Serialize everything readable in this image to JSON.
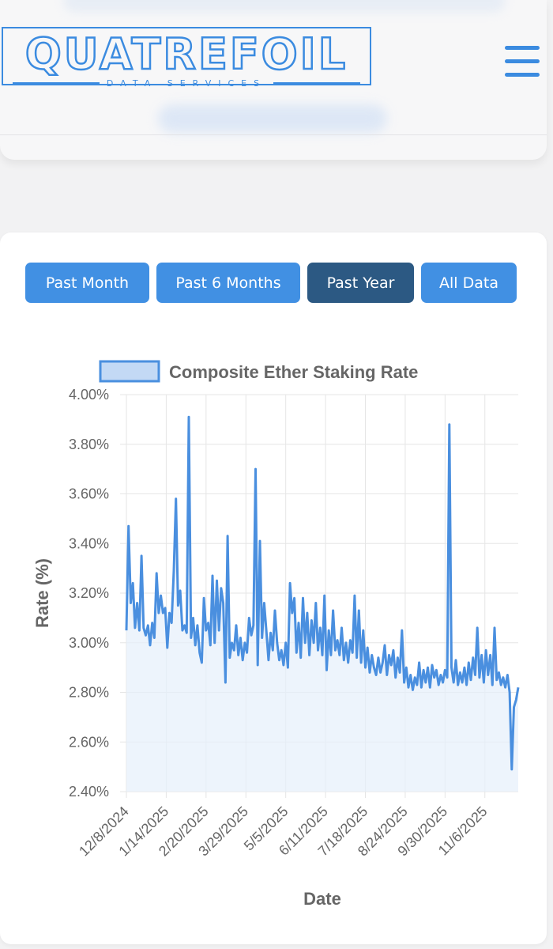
{
  "header": {
    "logo_text": "QUATREFOIL",
    "logo_subtext": "DATA SERVICES",
    "menu_icon": "hamburger-menu-icon"
  },
  "range_buttons": [
    {
      "label": "Past Month",
      "active": false
    },
    {
      "label": "Past 6 Months",
      "active": false
    },
    {
      "label": "Past Year",
      "active": true
    },
    {
      "label": "All Data",
      "active": false
    }
  ],
  "colors": {
    "accent": "#4190e3",
    "active_button": "#2c5983",
    "line": "#4a8fdf",
    "fill": "#e6effb",
    "legend_fill": "#c3d9f5"
  },
  "chart_data": {
    "type": "area",
    "title": "",
    "legend": [
      "Composite Ether Staking Rate"
    ],
    "legend_position": "top",
    "xlabel": "Date",
    "ylabel": "Rate (%)",
    "ylim": [
      2.4,
      4.0
    ],
    "yticks": [
      "4.00%",
      "3.80%",
      "3.60%",
      "3.40%",
      "3.20%",
      "3.00%",
      "2.80%",
      "2.60%",
      "2.40%"
    ],
    "xticks": [
      "12/8/2024",
      "1/14/2025",
      "2/20/2025",
      "3/29/2025",
      "5/5/2025",
      "6/11/2025",
      "7/18/2025",
      "8/24/2025",
      "9/30/2025",
      "11/6/2025"
    ],
    "x_range": [
      "12/8/2024",
      "12/7/2025"
    ],
    "grid": true,
    "series": [
      {
        "name": "Composite Ether Staking Rate",
        "points": [
          [
            "12/8/2024",
            3.05
          ],
          [
            "12/10/2024",
            3.47
          ],
          [
            "12/12/2024",
            3.16
          ],
          [
            "12/14/2024",
            3.24
          ],
          [
            "12/16/2024",
            3.06
          ],
          [
            "12/18/2024",
            3.16
          ],
          [
            "12/20/2024",
            3.05
          ],
          [
            "12/22/2024",
            3.35
          ],
          [
            "12/24/2024",
            3.06
          ],
          [
            "12/26/2024",
            3.03
          ],
          [
            "12/28/2024",
            3.07
          ],
          [
            "12/30/2024",
            2.99
          ],
          [
            "1/1/2025",
            3.08
          ],
          [
            "1/3/2025",
            3.02
          ],
          [
            "1/5/2025",
            3.28
          ],
          [
            "1/7/2025",
            3.12
          ],
          [
            "1/9/2025",
            3.19
          ],
          [
            "1/11/2025",
            3.12
          ],
          [
            "1/13/2025",
            3.14
          ],
          [
            "1/15/2025",
            2.98
          ],
          [
            "1/17/2025",
            3.12
          ],
          [
            "1/19/2025",
            3.08
          ],
          [
            "1/21/2025",
            3.29
          ],
          [
            "1/23/2025",
            3.58
          ],
          [
            "1/25/2025",
            3.15
          ],
          [
            "1/27/2025",
            3.21
          ],
          [
            "1/29/2025",
            3.05
          ],
          [
            "1/31/2025",
            3.07
          ],
          [
            "2/2/2025",
            3.04
          ],
          [
            "2/4/2025",
            3.91
          ],
          [
            "2/6/2025",
            3.02
          ],
          [
            "2/8/2025",
            3.1
          ],
          [
            "2/10/2025",
            2.99
          ],
          [
            "2/12/2025",
            3.07
          ],
          [
            "2/14/2025",
            2.96
          ],
          [
            "2/16/2025",
            2.92
          ],
          [
            "2/18/2025",
            3.18
          ],
          [
            "2/20/2025",
            3.05
          ],
          [
            "2/22/2025",
            3.08
          ],
          [
            "2/24/2025",
            2.99
          ],
          [
            "2/26/2025",
            3.27
          ],
          [
            "2/28/2025",
            3.0
          ],
          [
            "3/2/2025",
            3.25
          ],
          [
            "3/4/2025",
            3.05
          ],
          [
            "3/6/2025",
            3.22
          ],
          [
            "3/8/2025",
            3.16
          ],
          [
            "3/10/2025",
            2.84
          ],
          [
            "3/12/2025",
            3.43
          ],
          [
            "3/14/2025",
            2.94
          ],
          [
            "3/16/2025",
            3.0
          ],
          [
            "3/18/2025",
            2.97
          ],
          [
            "3/20/2025",
            3.07
          ],
          [
            "3/22/2025",
            2.95
          ],
          [
            "3/24/2025",
            3.02
          ],
          [
            "3/26/2025",
            2.93
          ],
          [
            "3/28/2025",
            3.0
          ],
          [
            "3/30/2025",
            2.96
          ],
          [
            "4/1/2025",
            3.1
          ],
          [
            "4/3/2025",
            3.03
          ],
          [
            "4/5/2025",
            3.07
          ],
          [
            "4/7/2025",
            3.7
          ],
          [
            "4/9/2025",
            2.91
          ],
          [
            "4/11/2025",
            3.41
          ],
          [
            "4/13/2025",
            3.02
          ],
          [
            "4/15/2025",
            3.16
          ],
          [
            "4/17/2025",
            3.05
          ],
          [
            "4/19/2025",
            2.93
          ],
          [
            "4/21/2025",
            3.04
          ],
          [
            "4/23/2025",
            2.97
          ],
          [
            "4/25/2025",
            3.13
          ],
          [
            "4/27/2025",
            3.0
          ],
          [
            "4/29/2025",
            2.93
          ],
          [
            "5/1/2025",
            2.97
          ],
          [
            "5/3/2025",
            2.91
          ],
          [
            "5/5/2025",
            3.0
          ],
          [
            "5/7/2025",
            2.9
          ],
          [
            "5/9/2025",
            3.24
          ],
          [
            "5/11/2025",
            3.12
          ],
          [
            "5/13/2025",
            3.18
          ],
          [
            "5/15/2025",
            2.96
          ],
          [
            "5/17/2025",
            3.08
          ],
          [
            "5/19/2025",
            2.94
          ],
          [
            "5/21/2025",
            3.18
          ],
          [
            "5/23/2025",
            3.0
          ],
          [
            "5/25/2025",
            3.12
          ],
          [
            "5/27/2025",
            2.95
          ],
          [
            "5/29/2025",
            3.09
          ],
          [
            "5/31/2025",
            3.0
          ],
          [
            "6/2/2025",
            3.16
          ],
          [
            "6/4/2025",
            2.97
          ],
          [
            "6/6/2025",
            3.06
          ],
          [
            "6/8/2025",
            2.95
          ],
          [
            "6/10/2025",
            3.19
          ],
          [
            "6/12/2025",
            2.89
          ],
          [
            "6/14/2025",
            3.05
          ],
          [
            "6/16/2025",
            2.95
          ],
          [
            "6/18/2025",
            3.13
          ],
          [
            "6/20/2025",
            2.97
          ],
          [
            "6/22/2025",
            3.01
          ],
          [
            "6/24/2025",
            2.95
          ],
          [
            "6/26/2025",
            3.06
          ],
          [
            "6/28/2025",
            2.93
          ],
          [
            "6/30/2025",
            3.0
          ],
          [
            "7/2/2025",
            2.92
          ],
          [
            "7/4/2025",
            3.01
          ],
          [
            "7/6/2025",
            2.96
          ],
          [
            "7/8/2025",
            3.19
          ],
          [
            "7/10/2025",
            2.94
          ],
          [
            "7/12/2025",
            3.13
          ],
          [
            "7/14/2025",
            2.92
          ],
          [
            "7/16/2025",
            3.05
          ],
          [
            "7/18/2025",
            2.9
          ],
          [
            "7/20/2025",
            2.98
          ],
          [
            "7/22/2025",
            2.88
          ],
          [
            "7/24/2025",
            2.95
          ],
          [
            "7/26/2025",
            2.9
          ],
          [
            "7/28/2025",
            2.87
          ],
          [
            "7/30/2025",
            2.94
          ],
          [
            "8/1/2025",
            2.88
          ],
          [
            "8/3/2025",
            2.92
          ],
          [
            "8/5/2025",
            2.99
          ],
          [
            "8/7/2025",
            2.87
          ],
          [
            "8/9/2025",
            2.95
          ],
          [
            "8/11/2025",
            2.91
          ],
          [
            "8/13/2025",
            2.97
          ],
          [
            "8/15/2025",
            2.86
          ],
          [
            "8/17/2025",
            2.94
          ],
          [
            "8/19/2025",
            2.88
          ],
          [
            "8/21/2025",
            3.05
          ],
          [
            "8/23/2025",
            2.84
          ],
          [
            "8/25/2025",
            2.9
          ],
          [
            "8/27/2025",
            2.82
          ],
          [
            "8/29/2025",
            2.87
          ],
          [
            "8/31/2025",
            2.81
          ],
          [
            "9/2/2025",
            2.86
          ],
          [
            "9/4/2025",
            2.83
          ],
          [
            "9/6/2025",
            2.92
          ],
          [
            "9/8/2025",
            2.82
          ],
          [
            "9/10/2025",
            2.89
          ],
          [
            "9/12/2025",
            2.84
          ],
          [
            "9/14/2025",
            2.9
          ],
          [
            "9/16/2025",
            2.82
          ],
          [
            "9/18/2025",
            2.91
          ],
          [
            "9/20/2025",
            2.86
          ],
          [
            "9/22/2025",
            2.89
          ],
          [
            "9/24/2025",
            2.83
          ],
          [
            "9/26/2025",
            2.87
          ],
          [
            "9/28/2025",
            2.84
          ],
          [
            "9/30/2025",
            2.89
          ],
          [
            "10/2/2025",
            2.86
          ],
          [
            "10/4/2025",
            3.88
          ],
          [
            "10/6/2025",
            2.9
          ],
          [
            "10/8/2025",
            2.84
          ],
          [
            "10/10/2025",
            2.93
          ],
          [
            "10/12/2025",
            2.83
          ],
          [
            "10/14/2025",
            2.88
          ],
          [
            "10/16/2025",
            2.84
          ],
          [
            "10/18/2025",
            2.9
          ],
          [
            "10/20/2025",
            2.83
          ],
          [
            "10/22/2025",
            2.92
          ],
          [
            "10/24/2025",
            2.85
          ],
          [
            "10/26/2025",
            2.94
          ],
          [
            "10/28/2025",
            2.87
          ],
          [
            "10/30/2025",
            3.06
          ],
          [
            "11/1/2025",
            2.86
          ],
          [
            "11/3/2025",
            2.95
          ],
          [
            "11/5/2025",
            2.84
          ],
          [
            "11/7/2025",
            2.97
          ],
          [
            "11/9/2025",
            2.87
          ],
          [
            "11/11/2025",
            2.95
          ],
          [
            "11/13/2025",
            2.83
          ],
          [
            "11/15/2025",
            3.06
          ],
          [
            "11/17/2025",
            2.85
          ],
          [
            "11/19/2025",
            2.88
          ],
          [
            "11/21/2025",
            2.83
          ],
          [
            "11/23/2025",
            2.86
          ],
          [
            "11/25/2025",
            2.82
          ],
          [
            "11/27/2025",
            2.87
          ],
          [
            "11/29/2025",
            2.8
          ],
          [
            "12/1/2025",
            2.49
          ],
          [
            "12/3/2025",
            2.74
          ],
          [
            "12/5/2025",
            2.77
          ],
          [
            "12/7/2025",
            2.82
          ]
        ]
      }
    ]
  }
}
